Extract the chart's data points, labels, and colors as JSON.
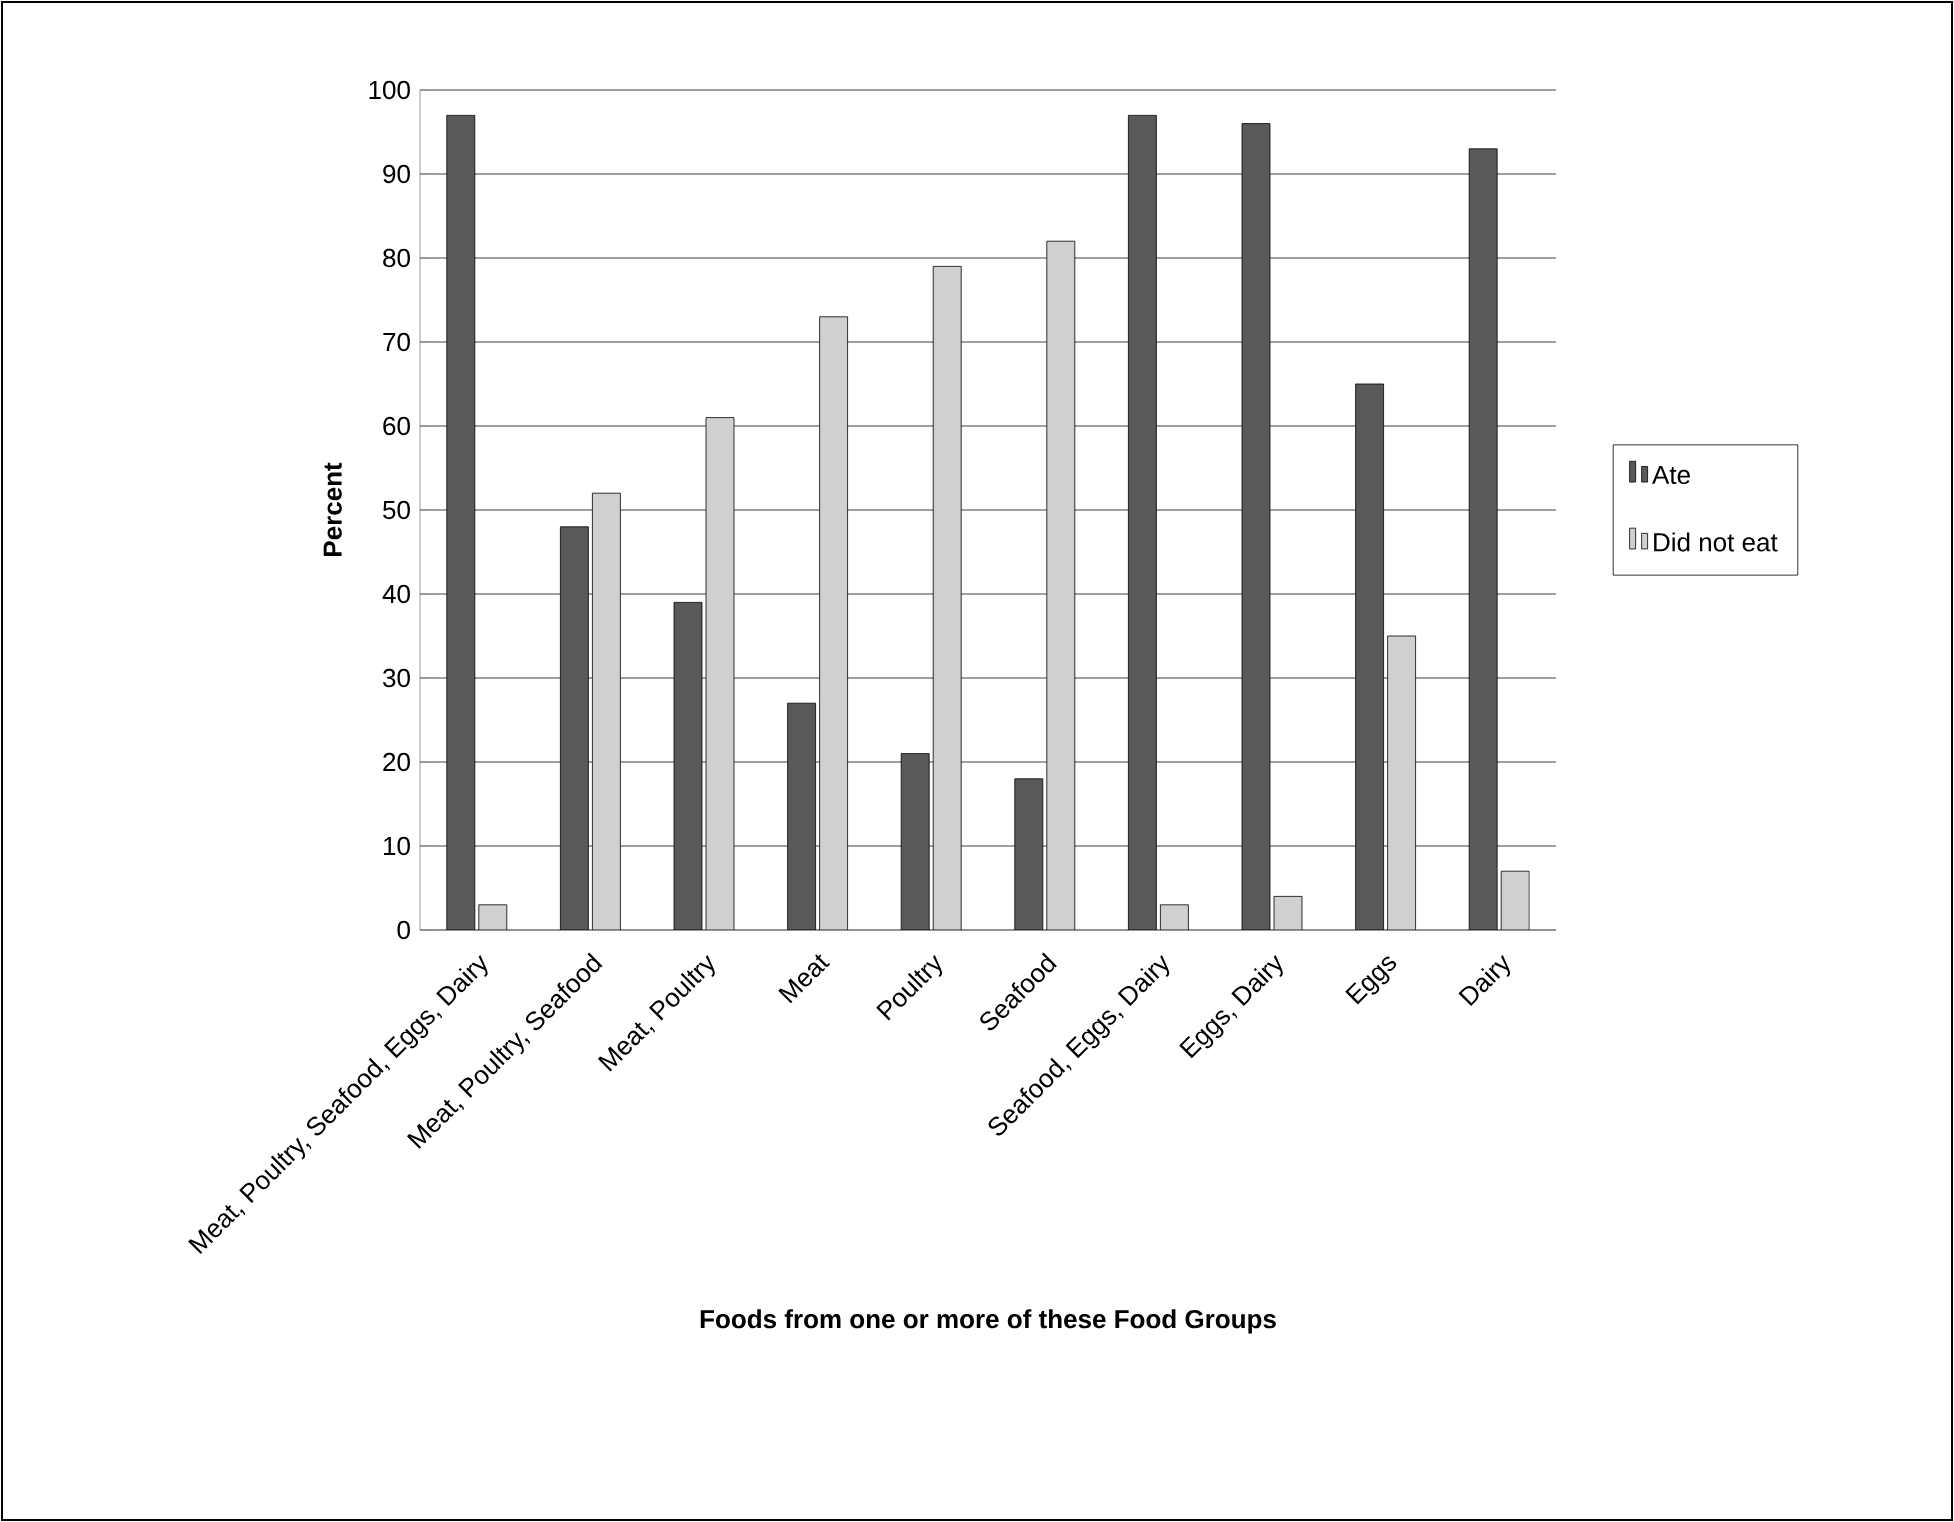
{
  "chart_data": {
    "type": "bar",
    "xlabel": "Foods from one or more of these Food Groups",
    "ylabel": "Percent",
    "categories": [
      "Meat, Poultry, Seafood, Eggs, Dairy",
      "Meat, Poultry, Seafood",
      "Meat, Poultry",
      "Meat",
      "Poultry",
      "Seafood",
      "Seafood, Eggs, Dairy",
      "Eggs, Dairy",
      "Eggs",
      "Dairy"
    ],
    "series": [
      {
        "name": "Ate",
        "color": "#595959",
        "values": [
          97,
          48,
          39,
          27,
          21,
          18,
          97,
          96,
          65,
          93
        ]
      },
      {
        "name": "Did not eat",
        "color": "#d0d0d0",
        "values": [
          3,
          52,
          61,
          73,
          79,
          82,
          3,
          4,
          35,
          7
        ]
      }
    ],
    "ylim": [
      0,
      100
    ],
    "yticks": [
      0,
      10,
      20,
      30,
      40,
      50,
      60,
      70,
      80,
      90,
      100
    ],
    "grid": "y",
    "legend": "right"
  }
}
